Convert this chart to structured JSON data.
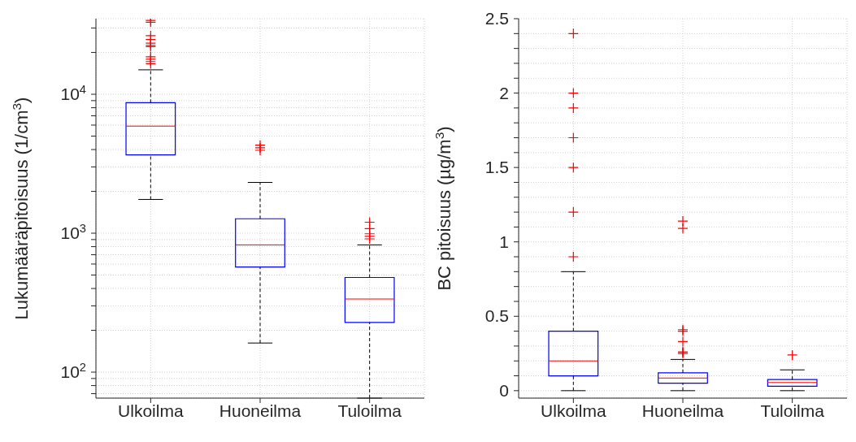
{
  "chart_data": [
    {
      "type": "box",
      "ylabel": "Lukumääräpitoisuus (1/cm$^{3}$)",
      "categories": [
        "Ulkoilma",
        "Huoneilma",
        "Tuloilma"
      ],
      "log": true,
      "grid": true,
      "ylim": [
        65,
        35000
      ],
      "yticks": [
        {
          "value": 70,
          "label": null
        },
        {
          "value": 80,
          "label": null
        },
        {
          "value": 90,
          "label": null
        },
        {
          "value": 100,
          "label": "10$^{2}$"
        },
        {
          "value": 200,
          "label": null
        },
        {
          "value": 300,
          "label": null
        },
        {
          "value": 400,
          "label": null
        },
        {
          "value": 500,
          "label": null
        },
        {
          "value": 600,
          "label": null
        },
        {
          "value": 700,
          "label": null
        },
        {
          "value": 800,
          "label": null
        },
        {
          "value": 900,
          "label": null
        },
        {
          "value": 1000,
          "label": "10$^{3}$"
        },
        {
          "value": 2000,
          "label": null
        },
        {
          "value": 3000,
          "label": null
        },
        {
          "value": 4000,
          "label": null
        },
        {
          "value": 5000,
          "label": null
        },
        {
          "value": 6000,
          "label": null
        },
        {
          "value": 7000,
          "label": null
        },
        {
          "value": 8000,
          "label": null
        },
        {
          "value": 9000,
          "label": null
        },
        {
          "value": 10000,
          "label": "10$^{4}$"
        },
        {
          "value": 20000,
          "label": null
        },
        {
          "value": 30000,
          "label": null
        }
      ],
      "series": [
        {
          "color": "#0000ff",
          "boxes": [
            {
              "low": 1750,
              "q1": 3660,
              "median": 5900,
              "q3": 8700,
              "high": 15000,
              "outliers": [
                34000,
                33000,
                26400,
                24800,
                23300,
                22500,
                22000,
                18600,
                17900,
                17200,
                16600
              ]
            },
            {
              "low": 162,
              "q1": 571,
              "median": 824,
              "q3": 1270,
              "high": 2320,
              "outliers": [
                4300,
                4120,
                3950
              ]
            },
            {
              "low": 65,
              "q1": 228,
              "median": 336,
              "q3": 480,
              "high": 824,
              "outliers": [
                1200,
                1080,
                990,
                950,
                910
              ]
            }
          ]
        }
      ]
    },
    {
      "type": "box",
      "ylabel": "BC pitoisuus (µg/m$^{3}$)",
      "categories": [
        "Ulkoilma",
        "Huoneilma",
        "Tuloilma"
      ],
      "grid": true,
      "ylim": [
        -0.05,
        2.5
      ],
      "yticks": [
        {
          "value": 0,
          "label": "0"
        },
        {
          "value": 0.1,
          "label": null
        },
        {
          "value": 0.2,
          "label": null
        },
        {
          "value": 0.3,
          "label": null
        },
        {
          "value": 0.4,
          "label": null
        },
        {
          "value": 0.5,
          "label": "0.5"
        },
        {
          "value": 0.6,
          "label": null
        },
        {
          "value": 0.7,
          "label": null
        },
        {
          "value": 0.8,
          "label": null
        },
        {
          "value": 0.9,
          "label": null
        },
        {
          "value": 1,
          "label": "1"
        },
        {
          "value": 1.1,
          "label": null
        },
        {
          "value": 1.2,
          "label": null
        },
        {
          "value": 1.3,
          "label": null
        },
        {
          "value": 1.4,
          "label": null
        },
        {
          "value": 1.5,
          "label": "1.5"
        },
        {
          "value": 1.6,
          "label": null
        },
        {
          "value": 1.7,
          "label": null
        },
        {
          "value": 1.8,
          "label": null
        },
        {
          "value": 1.9,
          "label": null
        },
        {
          "value": 2,
          "label": "2"
        },
        {
          "value": 2.1,
          "label": null
        },
        {
          "value": 2.2,
          "label": null
        },
        {
          "value": 2.3,
          "label": null
        },
        {
          "value": 2.4,
          "label": null
        },
        {
          "value": 2.5,
          "label": "2.5"
        }
      ],
      "series": [
        {
          "color": "#0000ff",
          "boxes": [
            {
              "low": 0,
              "q1": 0.1,
              "median": 0.2,
              "q3": 0.4,
              "high": 0.8,
              "outliers": [
                0.9,
                1.2,
                1.5,
                1.7,
                1.9,
                2,
                2.4
              ]
            },
            {
              "low": 0,
              "q1": 0.05,
              "median": 0.085,
              "q3": 0.12,
              "high": 0.21,
              "outliers": [
                0.25,
                0.26,
                0.26,
                0.33,
                0.4,
                0.41,
                1.09,
                1.14
              ]
            },
            {
              "low": 0,
              "q1": 0.03,
              "median": 0.055,
              "q3": 0.075,
              "high": 0.14,
              "outliers": [
                0.24
              ]
            }
          ]
        }
      ]
    }
  ]
}
